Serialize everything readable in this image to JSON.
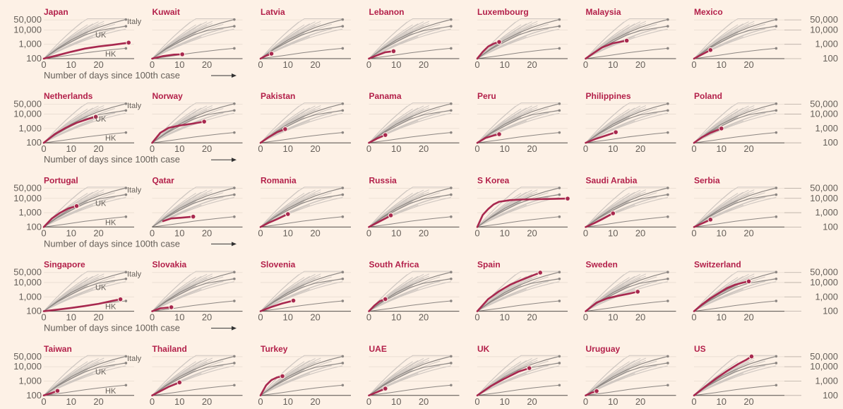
{
  "xlabel": "Number of days since 100th case",
  "y_tick_labels": [
    "50,000",
    "10,000",
    "1,000",
    "100"
  ],
  "x_tick_labels": [
    "0",
    "10",
    "20"
  ],
  "reference_labels": {
    "italy": "Italy",
    "uk": "UK",
    "hk": "HK"
  },
  "colors": {
    "background": "#fdf1e6",
    "highlight": "#a8284f",
    "title": "#b3204a",
    "gray": "#d0c8c2",
    "reference": "#8c8682",
    "text": "#66605a"
  },
  "chart_data": {
    "type": "line",
    "title": "",
    "xlabel": "Number of days since 100th case",
    "ylabel": "",
    "y_scale": "log",
    "ylim": [
      100,
      80000
    ],
    "xlim": [
      0,
      33
    ],
    "x_ticks": [
      0,
      10,
      20
    ],
    "y_ticks": [
      100,
      1000,
      10000,
      50000
    ],
    "reference_series": [
      {
        "name": "Italy",
        "points": [
          [
            0,
            100
          ],
          [
            5,
            500
          ],
          [
            10,
            2000
          ],
          [
            15,
            6000
          ],
          [
            20,
            15000
          ],
          [
            25,
            30000
          ],
          [
            30,
            53000
          ]
        ]
      },
      {
        "name": "UK",
        "points": [
          [
            0,
            100
          ],
          [
            5,
            450
          ],
          [
            10,
            1500
          ],
          [
            15,
            4500
          ],
          [
            20,
            9000
          ],
          [
            25,
            13000
          ],
          [
            30,
            18000
          ]
        ]
      },
      {
        "name": "HK",
        "points": [
          [
            0,
            100
          ],
          [
            8,
            160
          ],
          [
            15,
            250
          ],
          [
            20,
            330
          ],
          [
            25,
            420
          ],
          [
            30,
            520
          ]
        ]
      }
    ],
    "panels": [
      {
        "country": "Japan",
        "points": [
          [
            0,
            100
          ],
          [
            5,
            170
          ],
          [
            10,
            300
          ],
          [
            15,
            500
          ],
          [
            20,
            700
          ],
          [
            25,
            900
          ],
          [
            31,
            1300
          ]
        ]
      },
      {
        "country": "Kuwait",
        "points": [
          [
            0,
            100
          ],
          [
            4,
            150
          ],
          [
            8,
            190
          ],
          [
            11,
            200
          ]
        ]
      },
      {
        "country": "Latvia",
        "points": [
          [
            0,
            100
          ],
          [
            2,
            160
          ],
          [
            4,
            220
          ]
        ]
      },
      {
        "country": "Lebanon",
        "points": [
          [
            0,
            100
          ],
          [
            3,
            170
          ],
          [
            6,
            280
          ],
          [
            9,
            330
          ]
        ]
      },
      {
        "country": "Luxembourg",
        "points": [
          [
            0,
            100
          ],
          [
            2,
            300
          ],
          [
            4,
            700
          ],
          [
            6,
            1100
          ],
          [
            8,
            1450
          ]
        ]
      },
      {
        "country": "Malaysia",
        "points": [
          [
            0,
            100
          ],
          [
            3,
            250
          ],
          [
            6,
            600
          ],
          [
            10,
            1200
          ],
          [
            15,
            1800
          ]
        ]
      },
      {
        "country": "Mexico",
        "points": [
          [
            0,
            100
          ],
          [
            2,
            160
          ],
          [
            4,
            250
          ],
          [
            6,
            400
          ]
        ]
      },
      {
        "country": "Netherlands",
        "points": [
          [
            0,
            100
          ],
          [
            4,
            400
          ],
          [
            8,
            1100
          ],
          [
            12,
            2500
          ],
          [
            16,
            4500
          ],
          [
            19,
            6500
          ]
        ]
      },
      {
        "country": "Norway",
        "points": [
          [
            0,
            100
          ],
          [
            3,
            500
          ],
          [
            6,
            1100
          ],
          [
            10,
            1600
          ],
          [
            15,
            2200
          ],
          [
            19,
            3000
          ]
        ]
      },
      {
        "country": "Pakistan",
        "points": [
          [
            0,
            100
          ],
          [
            3,
            250
          ],
          [
            6,
            550
          ],
          [
            9,
            900
          ]
        ]
      },
      {
        "country": "Panama",
        "points": [
          [
            0,
            100
          ],
          [
            3,
            200
          ],
          [
            6,
            350
          ]
        ]
      },
      {
        "country": "Peru",
        "points": [
          [
            0,
            100
          ],
          [
            3,
            220
          ],
          [
            6,
            330
          ],
          [
            8,
            400
          ]
        ]
      },
      {
        "country": "Philippines",
        "points": [
          [
            0,
            100
          ],
          [
            4,
            200
          ],
          [
            8,
            350
          ],
          [
            11,
            550
          ]
        ]
      },
      {
        "country": "Poland",
        "points": [
          [
            0,
            100
          ],
          [
            3,
            250
          ],
          [
            6,
            500
          ],
          [
            10,
            1000
          ]
        ]
      },
      {
        "country": "Portugal",
        "points": [
          [
            0,
            100
          ],
          [
            3,
            400
          ],
          [
            6,
            1000
          ],
          [
            9,
            2000
          ],
          [
            12,
            2900
          ]
        ]
      },
      {
        "country": "Qatar",
        "points": [
          [
            4,
            260
          ],
          [
            7,
            400
          ],
          [
            11,
            450
          ],
          [
            15,
            530
          ]
        ]
      },
      {
        "country": "Romania",
        "points": [
          [
            0,
            100
          ],
          [
            3,
            200
          ],
          [
            6,
            350
          ],
          [
            10,
            800
          ]
        ]
      },
      {
        "country": "Russia",
        "points": [
          [
            0,
            100
          ],
          [
            3,
            200
          ],
          [
            6,
            400
          ],
          [
            8,
            650
          ]
        ]
      },
      {
        "country": "S Korea",
        "points": [
          [
            0,
            100
          ],
          [
            2,
            700
          ],
          [
            4,
            1800
          ],
          [
            6,
            3800
          ],
          [
            8,
            5800
          ],
          [
            12,
            7500
          ],
          [
            16,
            8200
          ],
          [
            20,
            8600
          ],
          [
            26,
            9000
          ],
          [
            33,
            9600
          ]
        ]
      },
      {
        "country": "Saudi Arabia",
        "points": [
          [
            0,
            100
          ],
          [
            3,
            180
          ],
          [
            6,
            350
          ],
          [
            10,
            900
          ]
        ]
      },
      {
        "country": "Serbia",
        "points": [
          [
            0,
            100
          ],
          [
            3,
            180
          ],
          [
            6,
            330
          ]
        ]
      },
      {
        "country": "Singapore",
        "points": [
          [
            0,
            100
          ],
          [
            5,
            130
          ],
          [
            10,
            170
          ],
          [
            15,
            230
          ],
          [
            20,
            330
          ],
          [
            25,
            530
          ],
          [
            28,
            680
          ]
        ]
      },
      {
        "country": "Slovakia",
        "points": [
          [
            0,
            100
          ],
          [
            3,
            160
          ],
          [
            7,
            190
          ]
        ]
      },
      {
        "country": "Slovenia",
        "points": [
          [
            0,
            100
          ],
          [
            4,
            200
          ],
          [
            8,
            350
          ],
          [
            12,
            550
          ]
        ]
      },
      {
        "country": "South Africa",
        "points": [
          [
            0,
            100
          ],
          [
            2,
            250
          ],
          [
            4,
            500
          ],
          [
            6,
            700
          ]
        ]
      },
      {
        "country": "Spain",
        "points": [
          [
            0,
            100
          ],
          [
            4,
            700
          ],
          [
            8,
            2500
          ],
          [
            12,
            7000
          ],
          [
            16,
            15000
          ],
          [
            20,
            30000
          ],
          [
            23,
            49000
          ]
        ]
      },
      {
        "country": "Sweden",
        "points": [
          [
            0,
            100
          ],
          [
            4,
            400
          ],
          [
            8,
            800
          ],
          [
            12,
            1200
          ],
          [
            16,
            1700
          ],
          [
            19,
            2300
          ]
        ]
      },
      {
        "country": "Switzerland",
        "points": [
          [
            0,
            100
          ],
          [
            3,
            300
          ],
          [
            6,
            800
          ],
          [
            9,
            1800
          ],
          [
            12,
            4000
          ],
          [
            15,
            7000
          ],
          [
            18,
            10000
          ],
          [
            20,
            12000
          ]
        ]
      },
      {
        "country": "Taiwan",
        "points": [
          [
            0,
            100
          ],
          [
            3,
            150
          ],
          [
            5,
            210
          ]
        ]
      },
      {
        "country": "Thailand",
        "points": [
          [
            0,
            100
          ],
          [
            3,
            200
          ],
          [
            6,
            400
          ],
          [
            10,
            800
          ]
        ]
      },
      {
        "country": "Turkey",
        "points": [
          [
            0,
            100
          ],
          [
            2,
            500
          ],
          [
            4,
            1200
          ],
          [
            6,
            1800
          ],
          [
            8,
            2200
          ]
        ]
      },
      {
        "country": "UAE",
        "points": [
          [
            0,
            100
          ],
          [
            3,
            170
          ],
          [
            6,
            300
          ]
        ]
      },
      {
        "country": "UK",
        "points": [
          [
            0,
            100
          ],
          [
            5,
            450
          ],
          [
            10,
            1500
          ],
          [
            15,
            4500
          ],
          [
            19,
            8000
          ]
        ]
      },
      {
        "country": "Uruguay",
        "points": [
          [
            0,
            100
          ],
          [
            2,
            150
          ],
          [
            4,
            200
          ]
        ]
      },
      {
        "country": "US",
        "points": [
          [
            0,
            100
          ],
          [
            4,
            400
          ],
          [
            8,
            1500
          ],
          [
            12,
            5000
          ],
          [
            16,
            15000
          ],
          [
            19,
            30000
          ],
          [
            21,
            52000
          ]
        ]
      }
    ]
  }
}
